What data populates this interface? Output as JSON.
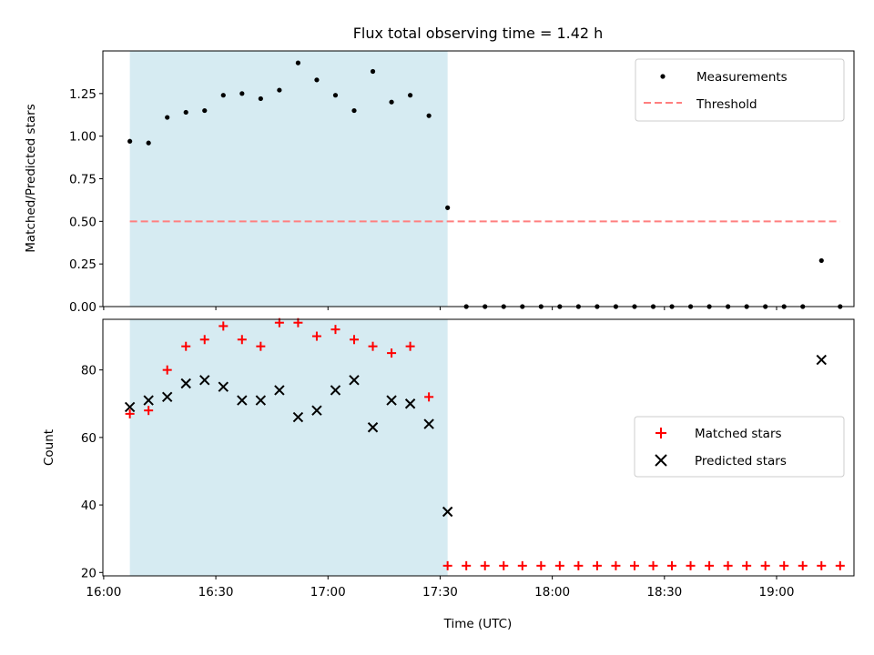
{
  "chart_data": [
    {
      "type": "scatter",
      "title": "Flux total observing time = 1.42 h",
      "ylabel": "Matched/Predicted stars",
      "xlabel": "",
      "ylim": [
        0,
        1.5
      ],
      "yticks": [
        "0.00",
        "0.25",
        "0.50",
        "0.75",
        "1.00",
        "1.25"
      ],
      "grid": false,
      "legend_position": "top-right",
      "shaded_interval": [
        "16:07",
        "17:32"
      ],
      "shade_color": "#add8e6",
      "series": [
        {
          "name": "Measurements",
          "marker": "dot",
          "color": "#000000",
          "x": [
            "16:07",
            "16:12",
            "16:17",
            "16:22",
            "16:27",
            "16:32",
            "16:37",
            "16:42",
            "16:47",
            "16:52",
            "16:57",
            "17:02",
            "17:07",
            "17:12",
            "17:17",
            "17:22",
            "17:27",
            "17:32",
            "17:37",
            "17:42",
            "17:47",
            "17:52",
            "17:57",
            "18:02",
            "18:07",
            "18:12",
            "18:17",
            "18:22",
            "18:27",
            "18:32",
            "18:37",
            "18:42",
            "18:47",
            "18:52",
            "18:57",
            "19:02",
            "19:07",
            "19:12",
            "19:17"
          ],
          "y": [
            0.97,
            0.96,
            1.11,
            1.14,
            1.15,
            1.24,
            1.25,
            1.22,
            1.27,
            1.43,
            1.33,
            1.24,
            1.15,
            1.38,
            1.2,
            1.24,
            1.12,
            0.58,
            0,
            0,
            0,
            0,
            0,
            0,
            0,
            0,
            0,
            0,
            0,
            0,
            0,
            0,
            0,
            0,
            0,
            0,
            0,
            0.27,
            0
          ]
        },
        {
          "name": "Threshold",
          "marker": "dashed-line",
          "color": "#ff7f7f",
          "x": [
            "16:07",
            "19:17"
          ],
          "y": [
            0.5,
            0.5
          ]
        }
      ]
    },
    {
      "type": "scatter",
      "title": "",
      "ylabel": "Count",
      "xlabel": "Time (UTC)",
      "ylim": [
        19,
        95
      ],
      "yticks": [
        "20",
        "40",
        "60",
        "80"
      ],
      "xticks": [
        "16:00",
        "16:30",
        "17:00",
        "17:30",
        "18:00",
        "18:30",
        "19:00"
      ],
      "grid": false,
      "legend_position": "center-right",
      "shaded_interval": [
        "16:07",
        "17:32"
      ],
      "shade_color": "#add8e6",
      "series": [
        {
          "name": "Matched stars",
          "marker": "plus",
          "color": "#ff0000",
          "x": [
            "16:07",
            "16:12",
            "16:17",
            "16:22",
            "16:27",
            "16:32",
            "16:37",
            "16:42",
            "16:47",
            "16:52",
            "16:57",
            "17:02",
            "17:07",
            "17:12",
            "17:17",
            "17:22",
            "17:27",
            "17:32",
            "17:37",
            "17:42",
            "17:47",
            "17:52",
            "17:57",
            "18:02",
            "18:07",
            "18:12",
            "18:17",
            "18:22",
            "18:27",
            "18:32",
            "18:37",
            "18:42",
            "18:47",
            "18:52",
            "18:57",
            "19:02",
            "19:07",
            "19:12",
            "19:17"
          ],
          "y": [
            67,
            68,
            80,
            87,
            89,
            93,
            89,
            87,
            94,
            94,
            90,
            92,
            89,
            87,
            85,
            87,
            72,
            22,
            22,
            22,
            22,
            22,
            22,
            22,
            22,
            22,
            22,
            22,
            22,
            22,
            22,
            22,
            22,
            22,
            22,
            22,
            22,
            22,
            22
          ]
        },
        {
          "name": "Predicted stars",
          "marker": "x",
          "color": "#000000",
          "x": [
            "16:07",
            "16:12",
            "16:17",
            "16:22",
            "16:27",
            "16:32",
            "16:37",
            "16:42",
            "16:47",
            "16:52",
            "16:57",
            "17:02",
            "17:07",
            "17:12",
            "17:17",
            "17:22",
            "17:27",
            "17:32",
            "19:12"
          ],
          "y": [
            69,
            71,
            72,
            76,
            77,
            75,
            71,
            71,
            74,
            66,
            68,
            74,
            77,
            63,
            71,
            70,
            64,
            38,
            83
          ]
        }
      ]
    }
  ]
}
